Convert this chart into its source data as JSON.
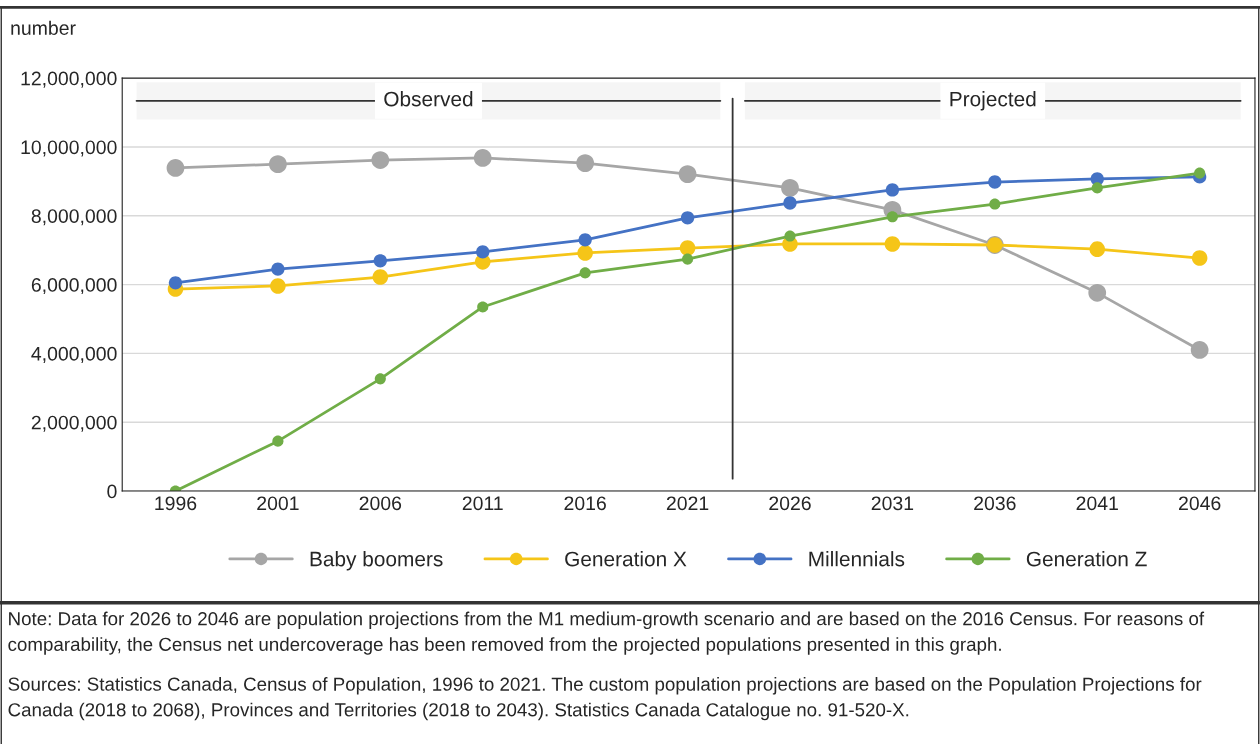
{
  "chart_data": {
    "type": "line",
    "ylabel": "number",
    "x": [
      1996,
      2001,
      2006,
      2011,
      2016,
      2021,
      2026,
      2031,
      2036,
      2041,
      2046
    ],
    "xlim": [
      1993.4,
      2048.7
    ],
    "xticks": [
      1996,
      2001,
      2006,
      2011,
      2016,
      2021,
      2026,
      2031,
      2036,
      2041,
      2046
    ],
    "ylim": [
      0,
      12000000
    ],
    "yticks": [
      {
        "value": 0,
        "label": "0"
      },
      {
        "value": 2000000,
        "label": "2,000,000"
      },
      {
        "value": 4000000,
        "label": "4,000,000"
      },
      {
        "value": 6000000,
        "label": "6,000,000"
      },
      {
        "value": 8000000,
        "label": "8,000,000"
      },
      {
        "value": 10000000,
        "label": "10,000,000"
      },
      {
        "value": 12000000,
        "label": "12,000,000"
      }
    ],
    "grid": "y",
    "marker": "circle",
    "line_style": "solid",
    "legend": "bottom",
    "series": [
      {
        "name": "Baby boomers",
        "color": "#a6a6a6",
        "values": [
          9390000,
          9500000,
          9620000,
          9680000,
          9530000,
          9210000,
          8810000,
          8170000,
          7150000,
          5760000,
          4100000
        ]
      },
      {
        "name": "Generation X",
        "color": "#f5c518",
        "values": [
          5870000,
          5960000,
          6220000,
          6660000,
          6920000,
          7060000,
          7180000,
          7180000,
          7150000,
          7030000,
          6770000
        ]
      },
      {
        "name": "Millennials",
        "color": "#4472c4",
        "values": [
          6050000,
          6450000,
          6690000,
          6950000,
          7300000,
          7940000,
          8370000,
          8750000,
          8980000,
          9070000,
          9130000
        ]
      },
      {
        "name": "Generation Z",
        "color": "#70ad47",
        "values": [
          0,
          1450000,
          3260000,
          5350000,
          6340000,
          6740000,
          7410000,
          7970000,
          8340000,
          8810000,
          9240000
        ]
      }
    ],
    "ref_lines": [
      {
        "axis": "x",
        "value": 2023.2,
        "color": "#333333",
        "line_style": "solid"
      }
    ],
    "bands": [
      {
        "axis": "x",
        "from": 1994.1,
        "to": 2022.6,
        "label": "Observed",
        "color": "#333333"
      },
      {
        "axis": "x",
        "from": 2023.8,
        "to": 2048,
        "label": "Projected",
        "color": "#333333"
      }
    ],
    "annotations": [
      "Note: Data for 2026 to 2046 are population projections from the M1 medium-growth scenario and are based on the 2016 Census. For reasons of comparability, the Census net undercoverage has been removed from the projected populations presented in this graph.",
      "Sources: Statistics Canada, Census of Population, 1996 to 2021. The custom population projections are based on the Population Projections for Canada (2018 to 2068), Provinces and Territories (2018 to 2043). Statistics Canada Catalogue no. 91-520-X."
    ]
  }
}
